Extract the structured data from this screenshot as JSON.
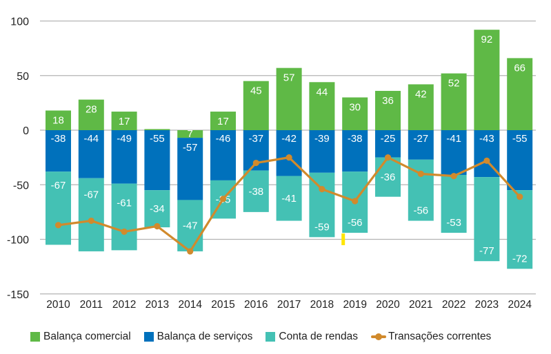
{
  "chart_data": {
    "type": "bar",
    "stacked": true,
    "title": "",
    "xlabel": "",
    "ylabel": "",
    "ylim": [
      -150,
      100
    ],
    "yticks": [
      100,
      50,
      0,
      -50,
      -100,
      -150
    ],
    "grid": true,
    "legend_position": "bottom",
    "categories": [
      "2010",
      "2011",
      "2012",
      "2013",
      "2014",
      "2015",
      "2016",
      "2017",
      "2018",
      "2019",
      "2020",
      "2021",
      "2022",
      "2023",
      "2024"
    ],
    "series": [
      {
        "name": "Balança comercial",
        "type": "bar",
        "color": "#5fb946",
        "values": [
          18,
          28,
          17,
          1,
          7,
          17,
          45,
          57,
          44,
          30,
          36,
          42,
          52,
          92,
          66
        ],
        "labels": [
          "18",
          "28",
          "17",
          "",
          "7",
          "17",
          "45",
          "57",
          "44",
          "30",
          "36",
          "42",
          "52",
          "92",
          "66"
        ]
      },
      {
        "name": "Balança de serviços",
        "type": "bar",
        "color": "#0071bc",
        "values": [
          -38,
          -44,
          -49,
          -55,
          -57,
          -46,
          -37,
          -42,
          -39,
          -38,
          -25,
          -27,
          -41,
          -43,
          -55
        ],
        "labels": [
          "-38",
          "-44",
          "-49",
          "-55",
          "-57",
          "-46",
          "-37",
          "-42",
          "-39",
          "-38",
          "-25",
          "-27",
          "-41",
          "-43",
          "-55"
        ]
      },
      {
        "name": "Conta de rendas",
        "type": "bar",
        "color": "#44c1b4",
        "values": [
          -67,
          -67,
          -61,
          -34,
          -47,
          -35,
          -38,
          -41,
          -59,
          -56,
          -36,
          -56,
          -53,
          -77,
          -72
        ],
        "labels": [
          "-67",
          "-67",
          "-61",
          "-34",
          "-47",
          "-35",
          "-38",
          "-41",
          "-59",
          "-56",
          "-36",
          "-56",
          "-53",
          "-77",
          "-72"
        ]
      },
      {
        "name": "Transações correntes",
        "type": "line",
        "color": "#d18a2c",
        "values": [
          -87,
          -83,
          -93,
          -88,
          -111,
          -63,
          -30,
          -25,
          -54,
          -65,
          -25,
          -40,
          -42,
          -28,
          -61
        ]
      }
    ],
    "annotations": [
      {
        "type": "marker",
        "color": "#ffe600",
        "near_category": "2019",
        "description": "small yellow marker below 2019 bar"
      }
    ]
  }
}
